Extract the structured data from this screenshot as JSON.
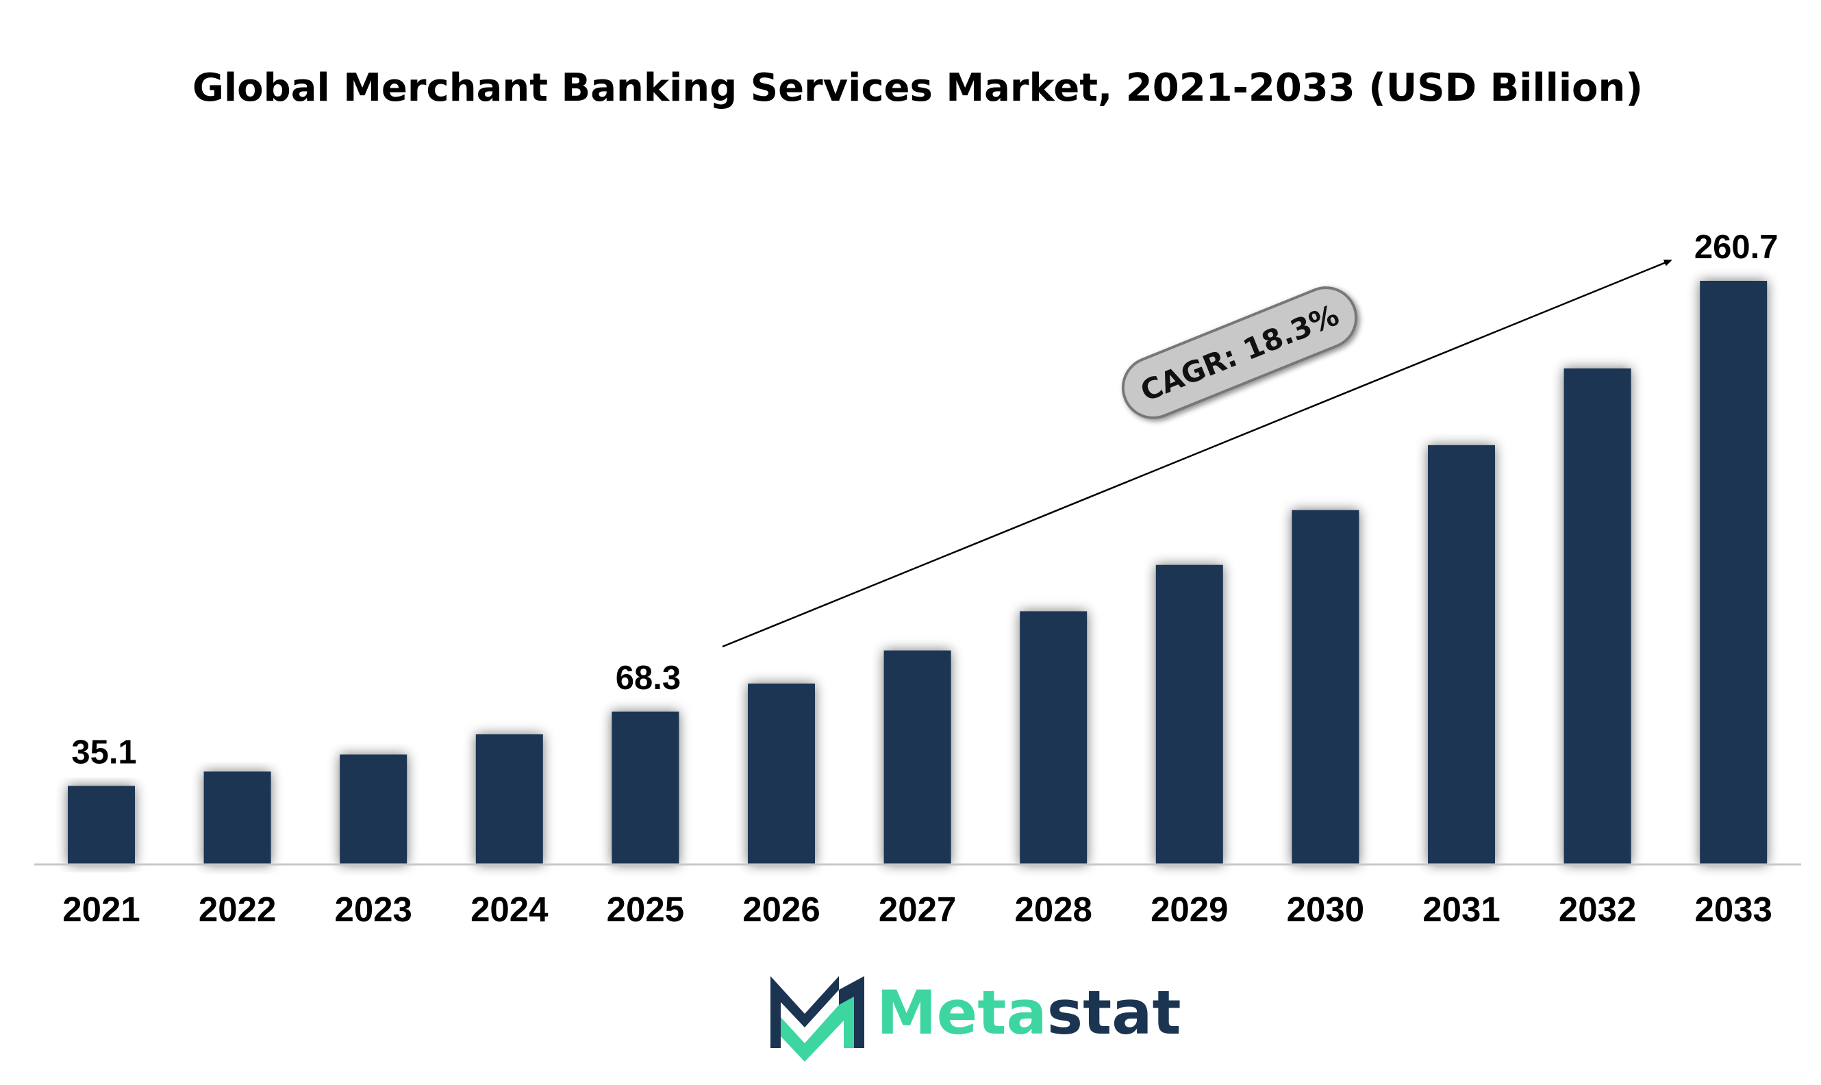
{
  "chart_data": {
    "type": "bar",
    "title": "Global Merchant Banking Services Market, 2021-2033 (USD Billion)",
    "xlabel": "",
    "ylabel": "",
    "categories": [
      "2021",
      "2022",
      "2023",
      "2024",
      "2025",
      "2026",
      "2027",
      "2028",
      "2029",
      "2030",
      "2031",
      "2032",
      "2033"
    ],
    "values": [
      35.1,
      41.5,
      49.1,
      58.1,
      68.3,
      80.8,
      95.6,
      113.1,
      133.8,
      158.3,
      187.3,
      221.6,
      260.7
    ],
    "data_labels": {
      "0": "35.1",
      "4": "68.3",
      "12": "260.7"
    },
    "ylim": [
      0,
      260.7
    ],
    "grid": false,
    "legend": "none",
    "bar_color": "#1b3452",
    "annotation": {
      "text": "CAGR: 18.3%",
      "arrow_from_category": "2026",
      "arrow_to_category": "2033"
    }
  },
  "branding": {
    "logo_text_part1": "Meta",
    "logo_text_part2": "stat",
    "color_dark": "#1b3452",
    "color_accent": "#3ed6a0"
  }
}
